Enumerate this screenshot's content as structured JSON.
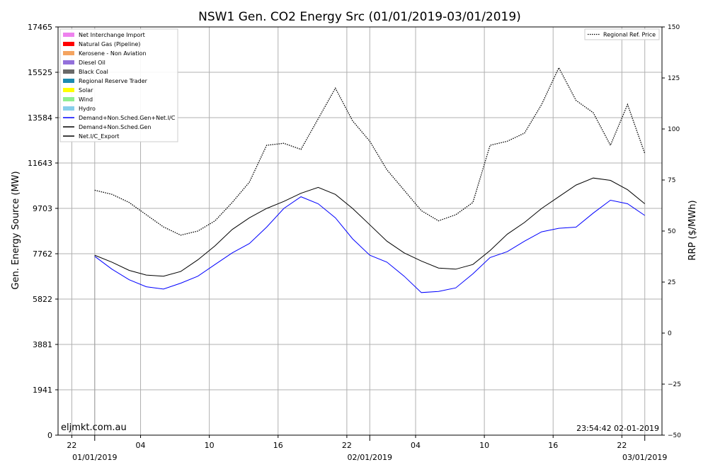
{
  "chart_data": {
    "type": "line",
    "title": "NSW1 Gen. CO2 Energy Src (01/01/2019-03/01/2019)",
    "ylabel_left": "Gen. Energy Source (MW)",
    "ylabel_right": "RRP ($/MWh)",
    "ylim_left": [
      0,
      17465
    ],
    "ylim_right": [
      -50,
      150
    ],
    "left_ticks": [
      "0",
      "1941",
      "3881",
      "5822",
      "7762",
      "9703",
      "11643",
      "13584",
      "15525",
      "17465"
    ],
    "right_ticks": [
      "−50",
      "−25",
      "0",
      "25",
      "50",
      "75",
      "100",
      "125",
      "150"
    ],
    "x_tick_labels": [
      "22",
      "04",
      "10",
      "16",
      "22",
      "04",
      "10",
      "16",
      "22"
    ],
    "x_date_labels": [
      "01/01/2019",
      "02/01/2019",
      "03/01/2019"
    ],
    "grid": true,
    "legend_left": [
      {
        "name": "Net Interchange Import",
        "color": "#ee82ee",
        "kind": "patch"
      },
      {
        "name": "Natural Gas (Pipeline)",
        "color": "#ff0000",
        "kind": "patch"
      },
      {
        "name": "Kerosene - Non Aviation",
        "color": "#f4a460",
        "kind": "patch"
      },
      {
        "name": "Diesel Oil",
        "color": "#9370db",
        "kind": "patch"
      },
      {
        "name": "Black Coal",
        "color": "#696969",
        "kind": "patch"
      },
      {
        "name": "Regional Reserve Trader",
        "color": "#1e8bb0",
        "kind": "patch"
      },
      {
        "name": "Solar",
        "color": "#ffff00",
        "kind": "patch"
      },
      {
        "name": "Wind",
        "color": "#90ee90",
        "kind": "patch"
      },
      {
        "name": "Hydro",
        "color": "#87ceeb",
        "kind": "patch"
      },
      {
        "name": "Demand+Non.Sched.Gen+Net.I/C",
        "color": "#0000ff",
        "kind": "line"
      },
      {
        "name": "Demand+Non.Sched.Gen",
        "color": "#000000",
        "kind": "line"
      },
      {
        "name": "Net.I/C_Export",
        "color": "#000000",
        "kind": "line"
      }
    ],
    "legend_right": [
      {
        "name": "Regional Ref. Price",
        "style": "dotted"
      }
    ],
    "watermark": "eljmkt.com.au",
    "timestamp": "23:54:42 02-01-2019",
    "x_hours": [
      0,
      1.5,
      3,
      4.5,
      6,
      7.5,
      9,
      10.5,
      12,
      13.5,
      15,
      16.5,
      18,
      19.5,
      21,
      22.5,
      24,
      25.5,
      27,
      28.5,
      30,
      31.5,
      33,
      34.5,
      36,
      37.5,
      39,
      40.5,
      42,
      43.5,
      45,
      46.5,
      48
    ],
    "series": [
      {
        "name": "Demand+Non.Sched.Gen",
        "color": "#000000",
        "values": [
          7700,
          7400,
          7050,
          6850,
          6800,
          7000,
          7500,
          8100,
          8800,
          9300,
          9700,
          10000,
          10350,
          10600,
          10300,
          9700,
          9000,
          8300,
          7800,
          7450,
          7150,
          7100,
          7300,
          7900,
          8600,
          9100,
          9700,
          10200,
          10700,
          11000,
          10900,
          10500,
          9900
        ]
      },
      {
        "name": "Demand+Non.Sched.Gen+Net.I/C",
        "color": "#0000ff",
        "values": [
          7650,
          7100,
          6650,
          6350,
          6250,
          6500,
          6800,
          7300,
          7800,
          8200,
          8900,
          9700,
          10200,
          9900,
          9300,
          8400,
          7700,
          7400,
          6800,
          6100,
          6150,
          6300,
          6900,
          7600,
          7850,
          8300,
          8700,
          8850,
          8900,
          9500,
          10050,
          9900,
          9400
        ]
      },
      {
        "name": "Regional Ref. Price",
        "color": "#000000",
        "axis": "right",
        "style": "dotted",
        "values": [
          70,
          68,
          64,
          58,
          52,
          48,
          50,
          55,
          64,
          74,
          92,
          93,
          90,
          105,
          120,
          104,
          94,
          80,
          70,
          60,
          55,
          58,
          64,
          92,
          94,
          98,
          112,
          130,
          114,
          108,
          92,
          112,
          88
        ]
      }
    ]
  }
}
